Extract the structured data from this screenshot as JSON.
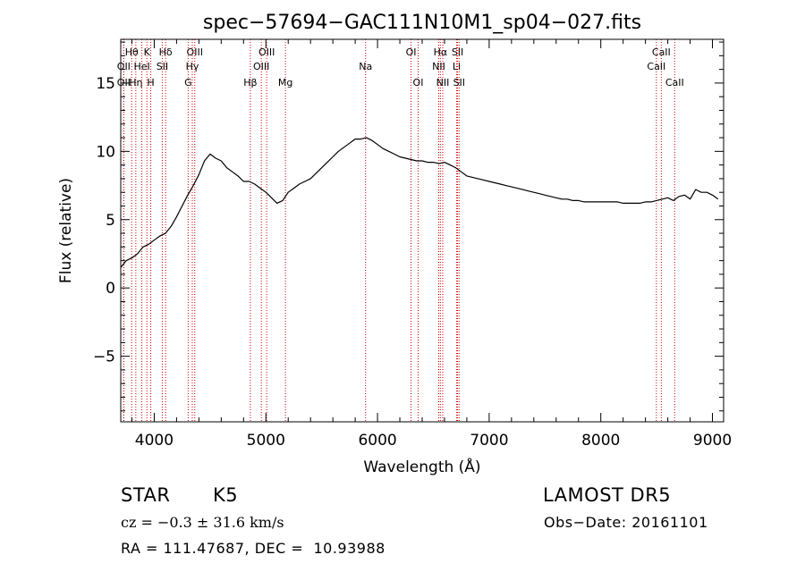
{
  "chart_data": {
    "type": "line",
    "title": "spec−57694−GAC111N10M1_sp04−027.fits",
    "xlabel": "Wavelength (Å)",
    "ylabel": "Flux (relative)",
    "xlim": [
      3700,
      9100
    ],
    "ylim": [
      -9.8,
      18.2
    ],
    "xticks": [
      4000,
      5000,
      6000,
      7000,
      8000,
      9000
    ],
    "xtick_labels": [
      "4000",
      "5000",
      "6000",
      "7000",
      "8000",
      "9000"
    ],
    "yticks": [
      -5,
      0,
      5,
      10,
      15
    ],
    "ytick_labels": [
      "−5",
      "0",
      "5",
      "10",
      "15"
    ],
    "x_minor_step": 200,
    "y_minor_step": 1,
    "grid": false,
    "line_color": "#000000",
    "marker_color": "#cc0000",
    "series": [
      {
        "x": [
          3700,
          3750,
          3800,
          3850,
          3900,
          3950,
          4000,
          4050,
          4100,
          4150,
          4200,
          4250,
          4300,
          4350,
          4400,
          4450,
          4500,
          4550,
          4600,
          4650,
          4700,
          4750,
          4800,
          4850,
          4900,
          4950,
          5000,
          5050,
          5100,
          5150,
          5200,
          5250,
          5300,
          5350,
          5400,
          5450,
          5500,
          5550,
          5600,
          5650,
          5700,
          5750,
          5800,
          5850,
          5900,
          5950,
          6000,
          6050,
          6100,
          6150,
          6200,
          6250,
          6300,
          6350,
          6400,
          6450,
          6500,
          6550,
          6600,
          6650,
          6700,
          6750,
          6800,
          6850,
          6900,
          6950,
          7000,
          7050,
          7100,
          7150,
          7200,
          7250,
          7300,
          7350,
          7400,
          7450,
          7500,
          7550,
          7600,
          7650,
          7700,
          7750,
          7800,
          7850,
          7900,
          7950,
          8000,
          8050,
          8100,
          8150,
          8200,
          8250,
          8300,
          8350,
          8400,
          8450,
          8500,
          8550,
          8600,
          8650,
          8700,
          8750,
          8800,
          8850,
          8900,
          8950,
          9000,
          9050
        ],
        "y": [
          1.5,
          2.0,
          2.2,
          2.5,
          3.0,
          3.2,
          3.5,
          3.8,
          4.0,
          4.5,
          5.2,
          6.0,
          6.8,
          7.5,
          8.3,
          9.3,
          9.8,
          9.5,
          9.3,
          8.8,
          8.5,
          8.2,
          7.8,
          7.8,
          7.6,
          7.3,
          7.0,
          6.6,
          6.2,
          6.4,
          7.0,
          7.3,
          7.6,
          7.8,
          8.0,
          8.4,
          8.8,
          9.2,
          9.6,
          10.0,
          10.3,
          10.6,
          10.9,
          10.9,
          11.0,
          10.8,
          10.5,
          10.2,
          10.0,
          9.8,
          9.6,
          9.5,
          9.4,
          9.3,
          9.3,
          9.2,
          9.2,
          9.1,
          9.2,
          9.0,
          8.8,
          8.5,
          8.2,
          8.1,
          8.0,
          7.9,
          7.8,
          7.7,
          7.6,
          7.5,
          7.4,
          7.3,
          7.2,
          7.1,
          7.0,
          6.9,
          6.8,
          6.7,
          6.6,
          6.5,
          6.5,
          6.4,
          6.4,
          6.3,
          6.3,
          6.3,
          6.3,
          6.3,
          6.3,
          6.3,
          6.2,
          6.2,
          6.2,
          6.2,
          6.3,
          6.3,
          6.4,
          6.5,
          6.6,
          6.4,
          6.7,
          6.8,
          6.5,
          7.2,
          7.0,
          7.0,
          6.8,
          6.5
        ]
      }
    ],
    "spectral_lines": [
      {
        "label": "Hθ",
        "x": 3798,
        "row": 1
      },
      {
        "label": "OII",
        "x": 3727,
        "row": 2
      },
      {
        "label": "OII",
        "x": 3727,
        "row": 3
      },
      {
        "label": "K",
        "x": 3934,
        "row": 1
      },
      {
        "label": "Hη",
        "x": 3835,
        "row": 3
      },
      {
        "label": "HeI",
        "x": 3889,
        "row": 2
      },
      {
        "label": "H",
        "x": 3969,
        "row": 3
      },
      {
        "label": "Hδ",
        "x": 4102,
        "row": 1
      },
      {
        "label": "SII",
        "x": 4072,
        "row": 2
      },
      {
        "label": "OIII",
        "x": 4363,
        "row": 1
      },
      {
        "label": "Hγ",
        "x": 4341,
        "row": 2
      },
      {
        "label": "G",
        "x": 4304,
        "row": 3
      },
      {
        "label": "OIII",
        "x": 5007,
        "row": 1
      },
      {
        "label": "OIII",
        "x": 4959,
        "row": 2
      },
      {
        "label": "Hβ",
        "x": 4861,
        "row": 3
      },
      {
        "label": "Mg",
        "x": 5175,
        "row": 3
      },
      {
        "label": "Na",
        "x": 5893,
        "row": 2
      },
      {
        "label": "OI",
        "x": 6300,
        "row": 1
      },
      {
        "label": "OI",
        "x": 6364,
        "row": 3
      },
      {
        "label": "Hα",
        "x": 6563,
        "row": 1
      },
      {
        "label": "NII",
        "x": 6548,
        "row": 2
      },
      {
        "label": "NII",
        "x": 6584,
        "row": 3
      },
      {
        "label": "SII",
        "x": 6717,
        "row": 1
      },
      {
        "label": "Li",
        "x": 6708,
        "row": 2
      },
      {
        "label": "SII",
        "x": 6731,
        "row": 3
      },
      {
        "label": "CaII",
        "x": 8542,
        "row": 1
      },
      {
        "label": "CaII",
        "x": 8498,
        "row": 2
      },
      {
        "label": "CaII",
        "x": 8662,
        "row": 3
      }
    ]
  },
  "info": {
    "class": "STAR",
    "subclass": "K5",
    "survey": "LAMOST DR5",
    "cz": "cz = −0.3 ± 31.6 km/s",
    "obs_date": "Obs−Date: 20161101",
    "coords": "RA = 111.47687, DEC =  10.93988"
  }
}
